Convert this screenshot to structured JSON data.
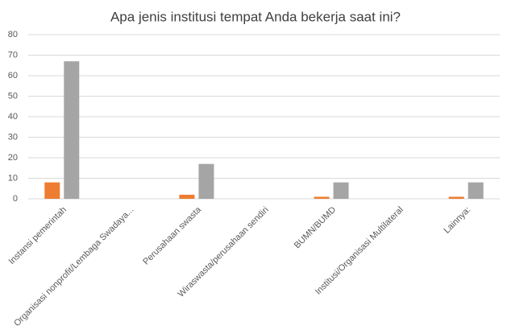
{
  "chart_data": {
    "type": "bar",
    "title": "Apa jenis institusi tempat Anda bekerja saat ini?",
    "categories": [
      "Instansi pemerintah",
      "Organisasi nonprofit/Lembaga Swadaya...",
      "Perusahaan swasta",
      "Wiraswasta/perusahaan sendiri",
      "BUMN/BUMD",
      "Institusi/Organisasi Multilateral",
      "Lainnya:"
    ],
    "series": [
      {
        "color": "#ed7d31",
        "values": [
          8,
          0,
          2,
          0,
          1,
          0,
          1
        ]
      },
      {
        "color": "#a5a5a5",
        "values": [
          67,
          0,
          17,
          0,
          8,
          0,
          8
        ]
      }
    ],
    "ylim": [
      0,
      80
    ],
    "yticks": [
      0,
      10,
      20,
      30,
      40,
      50,
      60,
      70,
      80
    ],
    "grid": true
  }
}
